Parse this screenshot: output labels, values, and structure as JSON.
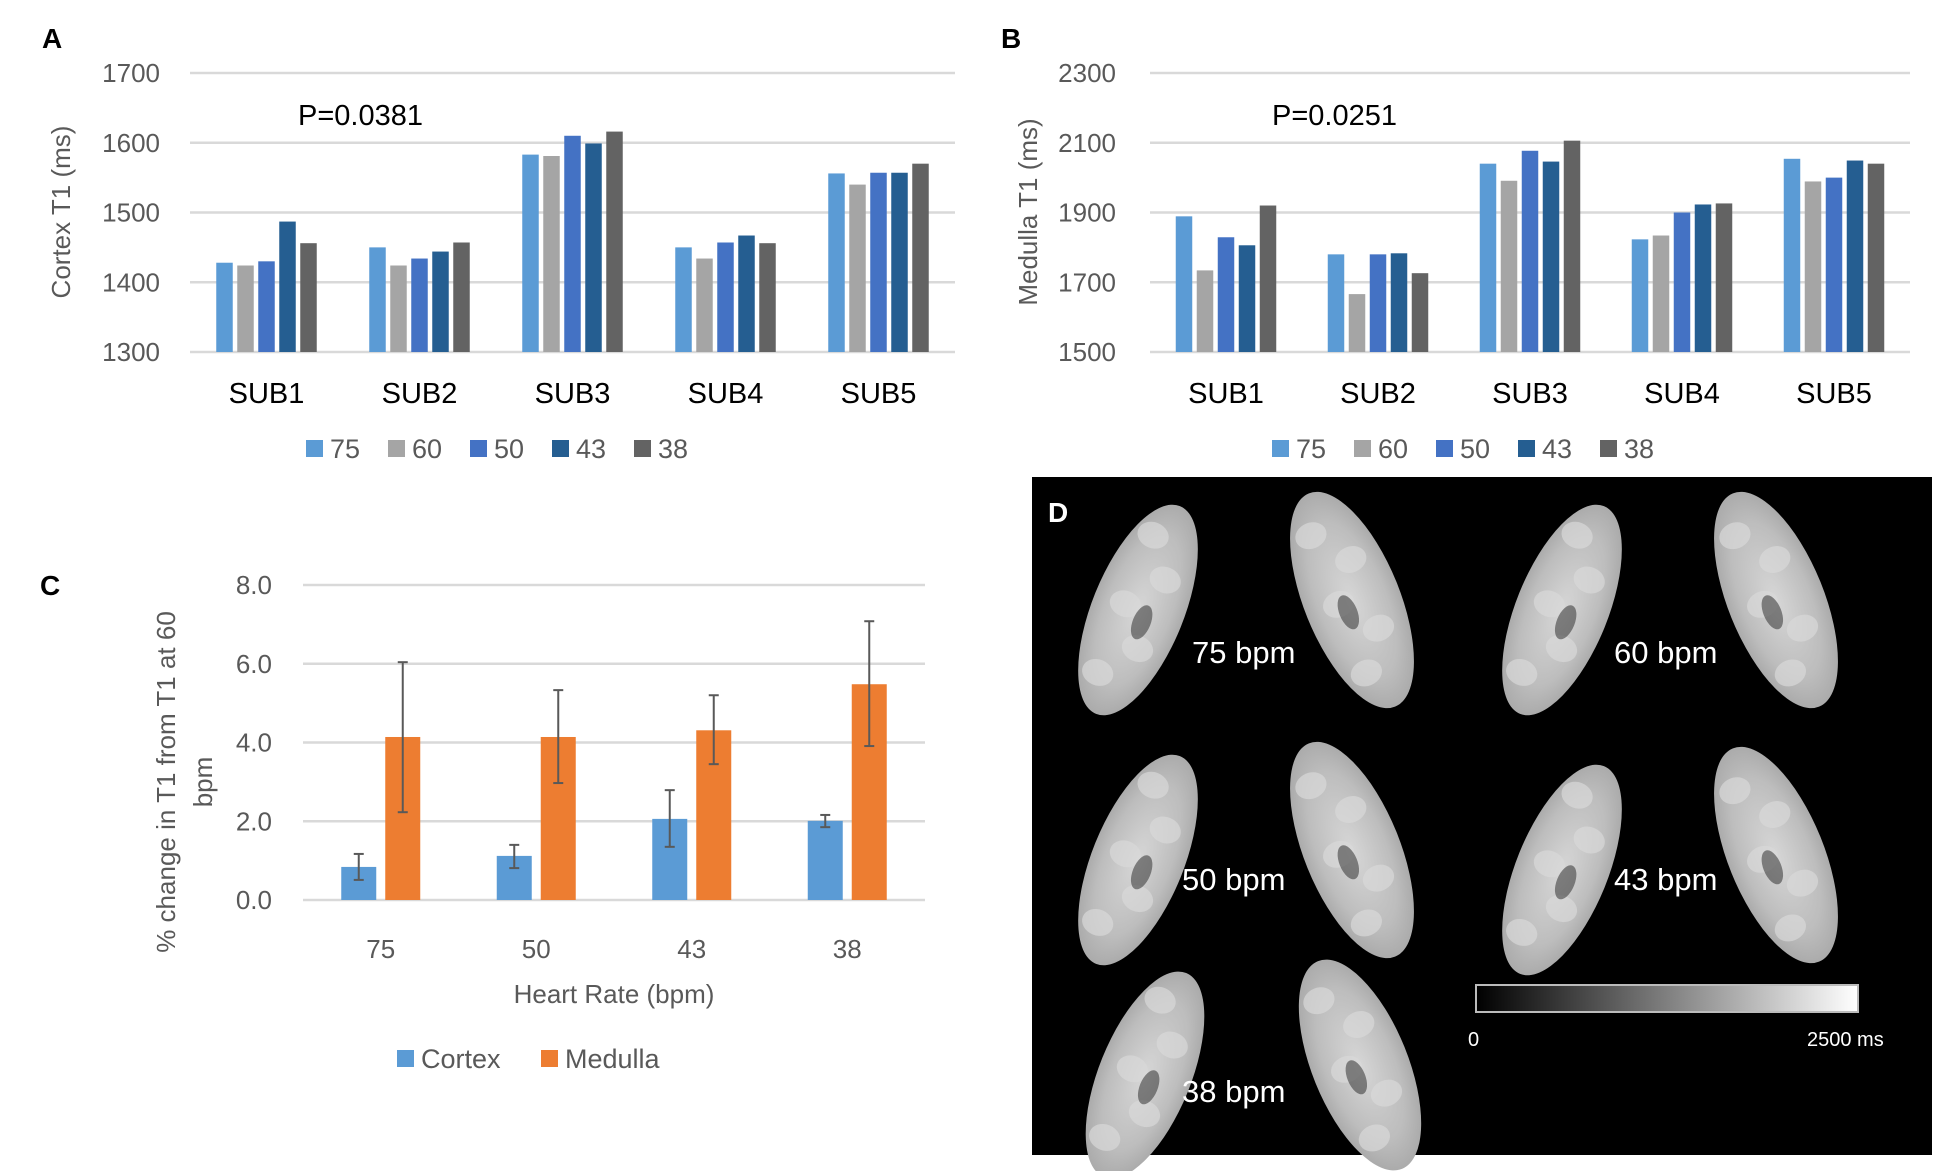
{
  "figure": {
    "panels": [
      "A",
      "B",
      "C",
      "D"
    ]
  },
  "chart_data": [
    {
      "panel": "A",
      "type": "bar",
      "title": "",
      "annotation": "P=0.0381",
      "xlabel": "",
      "ylabel": "Cortex T1 (ms)",
      "ylim": [
        1300,
        1700
      ],
      "yticks": [
        "1300",
        "1400",
        "1500",
        "1600",
        "1700"
      ],
      "ytick_values": [
        1300,
        1400,
        1500,
        1600,
        1700
      ],
      "grid": true,
      "legend_position": "bottom",
      "categories": [
        "SUB1",
        "SUB2",
        "SUB3",
        "SUB4",
        "SUB5"
      ],
      "series": [
        {
          "name": "75",
          "color": "#5b9bd5",
          "values": [
            1428,
            1450,
            1583,
            1450,
            1556
          ]
        },
        {
          "name": "60",
          "color": "#a5a5a5",
          "values": [
            1424,
            1424,
            1581,
            1434,
            1540
          ]
        },
        {
          "name": "50",
          "color": "#4472c4",
          "values": [
            1430,
            1434,
            1610,
            1457,
            1557
          ]
        },
        {
          "name": "43",
          "color": "#255e91",
          "values": [
            1487,
            1444,
            1599,
            1467,
            1557
          ]
        },
        {
          "name": "38",
          "color": "#636363",
          "values": [
            1456,
            1457,
            1616,
            1456,
            1570
          ]
        }
      ]
    },
    {
      "panel": "B",
      "type": "bar",
      "title": "",
      "annotation": "P=0.0251",
      "xlabel": "",
      "ylabel": "Medulla T1 (ms)",
      "ylim": [
        1500,
        2300
      ],
      "yticks": [
        "1500",
        "1700",
        "1900",
        "2100",
        "2300"
      ],
      "ytick_values": [
        1500,
        1700,
        1900,
        2100,
        2300
      ],
      "grid": true,
      "legend_position": "bottom",
      "categories": [
        "SUB1",
        "SUB2",
        "SUB3",
        "SUB4",
        "SUB5"
      ],
      "series": [
        {
          "name": "75",
          "color": "#5b9bd5",
          "values": [
            1889,
            1780,
            2040,
            1823,
            2054
          ]
        },
        {
          "name": "60",
          "color": "#a5a5a5",
          "values": [
            1734,
            1666,
            1991,
            1834,
            1989
          ]
        },
        {
          "name": "50",
          "color": "#4472c4",
          "values": [
            1829,
            1780,
            2077,
            1900,
            2000
          ]
        },
        {
          "name": "43",
          "color": "#255e91",
          "values": [
            1806,
            1783,
            2046,
            1923,
            2049
          ]
        },
        {
          "name": "38",
          "color": "#636363",
          "values": [
            1920,
            1726,
            2106,
            1926,
            2040
          ]
        }
      ]
    },
    {
      "panel": "C",
      "type": "bar",
      "title": "",
      "xlabel": "Heart Rate (bpm)",
      "ylabel_lines": [
        "% change in T1 from T1 at 60",
        "bpm"
      ],
      "ylim": [
        0,
        8
      ],
      "yticks": [
        "0.0",
        "2.0",
        "4.0",
        "6.0",
        "8.0"
      ],
      "ytick_values": [
        0,
        2,
        4,
        6,
        8
      ],
      "grid": true,
      "legend_position": "bottom",
      "categories": [
        "75",
        "50",
        "43",
        "38"
      ],
      "series": [
        {
          "name": "Cortex",
          "color": "#5b9bd5",
          "values": [
            0.84,
            1.12,
            2.06,
            2.01
          ],
          "err_high": [
            1.17,
            1.4,
            2.79,
            2.16
          ],
          "err_low": [
            0.51,
            0.81,
            1.35,
            1.85
          ]
        },
        {
          "name": "Medulla",
          "color": "#ed7d31",
          "values": [
            4.14,
            4.14,
            4.31,
            5.48
          ],
          "err_high": [
            6.04,
            5.33,
            5.2,
            7.08
          ],
          "err_low": [
            2.23,
            2.97,
            3.45,
            3.91
          ]
        }
      ]
    }
  ],
  "panel_d": {
    "label": "D",
    "background": "#000000",
    "maps": [
      {
        "label": "75 bpm"
      },
      {
        "label": "60 bpm"
      },
      {
        "label": "50 bpm"
      },
      {
        "label": "43 bpm"
      },
      {
        "label": "38 bpm"
      }
    ],
    "colorbar": {
      "min_label": "0",
      "max_label": "2500 ms",
      "min": 0,
      "max": 2500
    }
  }
}
